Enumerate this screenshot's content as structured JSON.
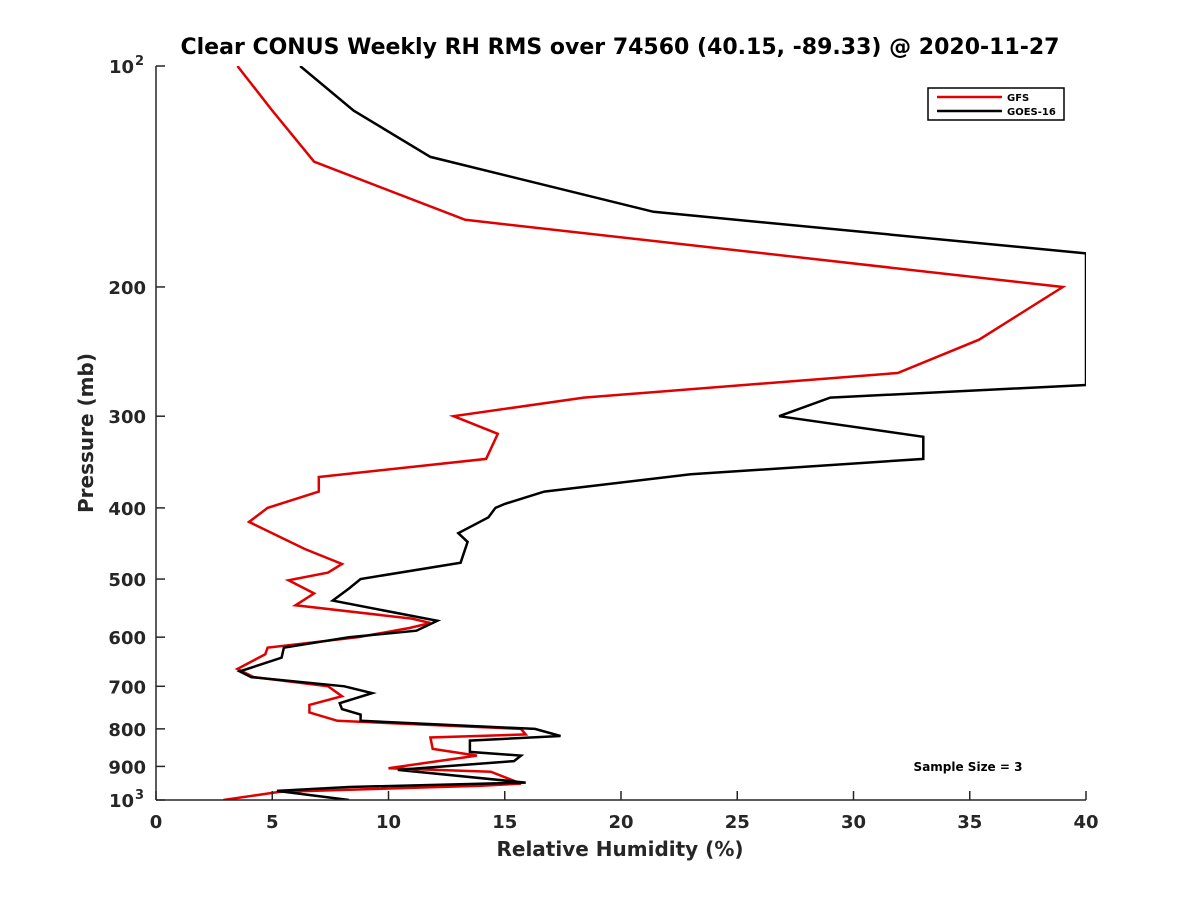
{
  "chart_data": {
    "type": "line",
    "title": "Clear CONUS Weekly RH RMS over 74560 (40.15, -89.33) @ 2020-11-27",
    "xlabel": "Relative Humidity (%)",
    "ylabel": "Pressure (mb)",
    "xlim": [
      0,
      40
    ],
    "ylim": [
      100,
      1000
    ],
    "y_scale": "log",
    "y_reversed": true,
    "grid": false,
    "legend_position": "top-right",
    "annotation": "Sample Size = 3",
    "x_ticks": [
      "0",
      "5",
      "10",
      "15",
      "20",
      "25",
      "30",
      "35",
      "40"
    ],
    "y_ticks": [
      {
        "value": 100,
        "base": "10",
        "exp": "2"
      },
      {
        "value": 200,
        "label": "200"
      },
      {
        "value": 300,
        "label": "300"
      },
      {
        "value": 400,
        "label": "400"
      },
      {
        "value": 500,
        "label": "500"
      },
      {
        "value": 600,
        "label": "600"
      },
      {
        "value": 700,
        "label": "700"
      },
      {
        "value": 800,
        "label": "800"
      },
      {
        "value": 900,
        "label": "900"
      },
      {
        "value": 1000,
        "base": "10",
        "exp": "3"
      }
    ],
    "series": [
      {
        "name": "GFS",
        "color": "#e00000",
        "points": [
          [
            3.5,
            100
          ],
          [
            5.0,
            115
          ],
          [
            6.8,
            135
          ],
          [
            13.3,
            162
          ],
          [
            39.0,
            200
          ],
          [
            35.4,
            236
          ],
          [
            31.9,
            262
          ],
          [
            18.4,
            283
          ],
          [
            12.8,
            300
          ],
          [
            14.7,
            317
          ],
          [
            14.2,
            343
          ],
          [
            7.0,
            363
          ],
          [
            7.0,
            380
          ],
          [
            4.8,
            400
          ],
          [
            4.0,
            418
          ],
          [
            6.4,
            455
          ],
          [
            8.0,
            477
          ],
          [
            7.4,
            490
          ],
          [
            5.7,
            502
          ],
          [
            6.8,
            523
          ],
          [
            6.0,
            543
          ],
          [
            11.0,
            566
          ],
          [
            11.8,
            574
          ],
          [
            10.9,
            583
          ],
          [
            8.7,
            600
          ],
          [
            4.8,
            620
          ],
          [
            4.7,
            633
          ],
          [
            3.5,
            663
          ],
          [
            4.2,
            680
          ],
          [
            7.4,
            700
          ],
          [
            8.0,
            722
          ],
          [
            6.6,
            742
          ],
          [
            6.6,
            760
          ],
          [
            7.8,
            780
          ],
          [
            15.7,
            800
          ],
          [
            15.9,
            814
          ],
          [
            11.8,
            822
          ],
          [
            11.9,
            852
          ],
          [
            13.8,
            870
          ],
          [
            11.6,
            890
          ],
          [
            10.0,
            905
          ],
          [
            14.4,
            915
          ],
          [
            15.7,
            950
          ],
          [
            14.0,
            956
          ],
          [
            5.3,
            975
          ],
          [
            2.9,
            1000
          ]
        ]
      },
      {
        "name": "GOES-16",
        "color": "#000000",
        "points": [
          [
            6.2,
            100
          ],
          [
            8.5,
            115
          ],
          [
            11.8,
            133
          ],
          [
            21.4,
            158
          ],
          [
            40.0,
            180
          ],
          [
            40.0,
            272
          ],
          [
            29.0,
            283
          ],
          [
            26.8,
            300
          ],
          [
            33.0,
            320
          ],
          [
            33.0,
            343
          ],
          [
            23.0,
            360
          ],
          [
            16.7,
            380
          ],
          [
            15.0,
            395
          ],
          [
            14.6,
            400
          ],
          [
            14.3,
            412
          ],
          [
            13.0,
            433
          ],
          [
            13.4,
            445
          ],
          [
            13.1,
            475
          ],
          [
            8.8,
            500
          ],
          [
            8.3,
            515
          ],
          [
            7.6,
            535
          ],
          [
            12.1,
            570
          ],
          [
            11.2,
            588
          ],
          [
            8.3,
            600
          ],
          [
            5.5,
            620
          ],
          [
            5.4,
            640
          ],
          [
            3.6,
            668
          ],
          [
            4.1,
            680
          ],
          [
            8.1,
            700
          ],
          [
            9.3,
            715
          ],
          [
            7.9,
            738
          ],
          [
            8.0,
            752
          ],
          [
            8.8,
            765
          ],
          [
            8.8,
            780
          ],
          [
            16.3,
            800
          ],
          [
            17.4,
            818
          ],
          [
            13.5,
            830
          ],
          [
            13.5,
            860
          ],
          [
            15.7,
            870
          ],
          [
            15.4,
            885
          ],
          [
            10.4,
            910
          ],
          [
            15.9,
            947
          ],
          [
            8.3,
            960
          ],
          [
            5.2,
            972
          ],
          [
            8.3,
            1000
          ]
        ]
      }
    ]
  }
}
